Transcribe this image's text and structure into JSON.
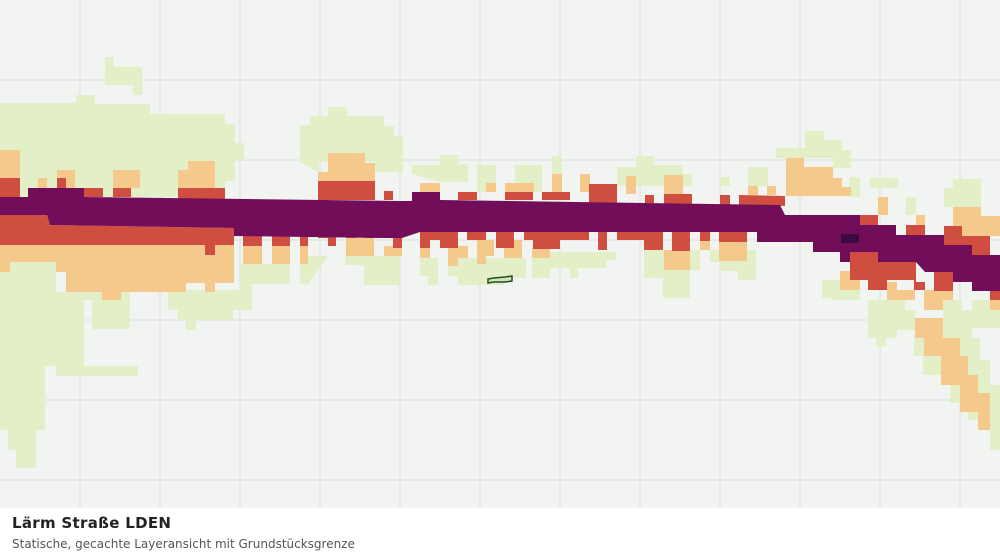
{
  "legend": {
    "title": "Lärm Straße LDEN",
    "subtitle": "Statische, gecachte Layeransicht mit Grundstücksgrenze"
  }
}
